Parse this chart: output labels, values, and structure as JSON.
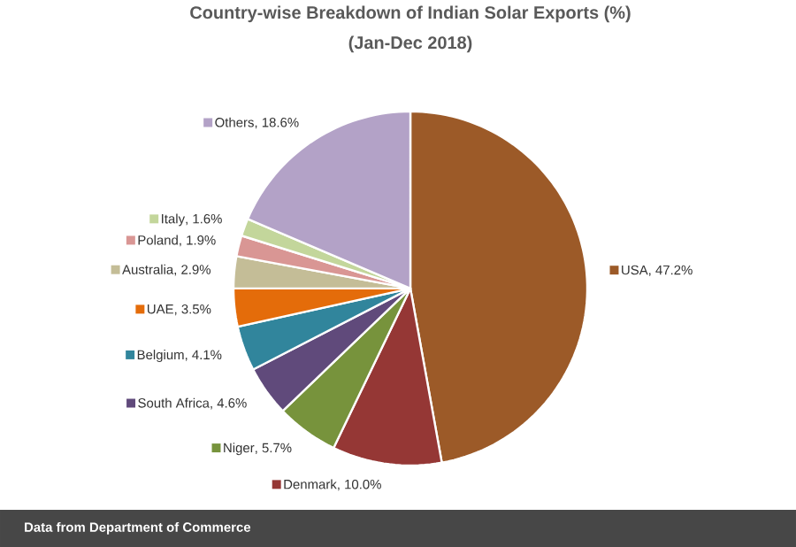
{
  "chart_data": {
    "type": "pie",
    "title": "Country-wise Breakdown of Indian Solar Exports (%)",
    "subtitle": "(Jan-Dec 2018)",
    "categories": [
      "USA",
      "Denmark",
      "Niger",
      "South Africa",
      "Belgium",
      "UAE",
      "Australia",
      "Poland",
      "Italy",
      "Others"
    ],
    "values": [
      47.2,
      10.0,
      5.7,
      4.6,
      4.1,
      3.5,
      2.9,
      1.9,
      1.6,
      18.6
    ],
    "value_labels": [
      ", 47.2%",
      ", 10.0%",
      ", 5.7%",
      ", 4.6%",
      ", 4.1%",
      ", 3.5%",
      ", 2.9%",
      ", 1.9%",
      ", 1.6%",
      ", 18.6%"
    ],
    "legend": "left",
    "colors": [
      "#9c5a28",
      "#953735",
      "#77933c",
      "#604a7b",
      "#31859c",
      "#e46c0a",
      "#c4bd97",
      "#d99694",
      "#c3d69b",
      "#b3a2c7"
    ],
    "annotations": [
      "Data from Department of Commerce"
    ]
  }
}
